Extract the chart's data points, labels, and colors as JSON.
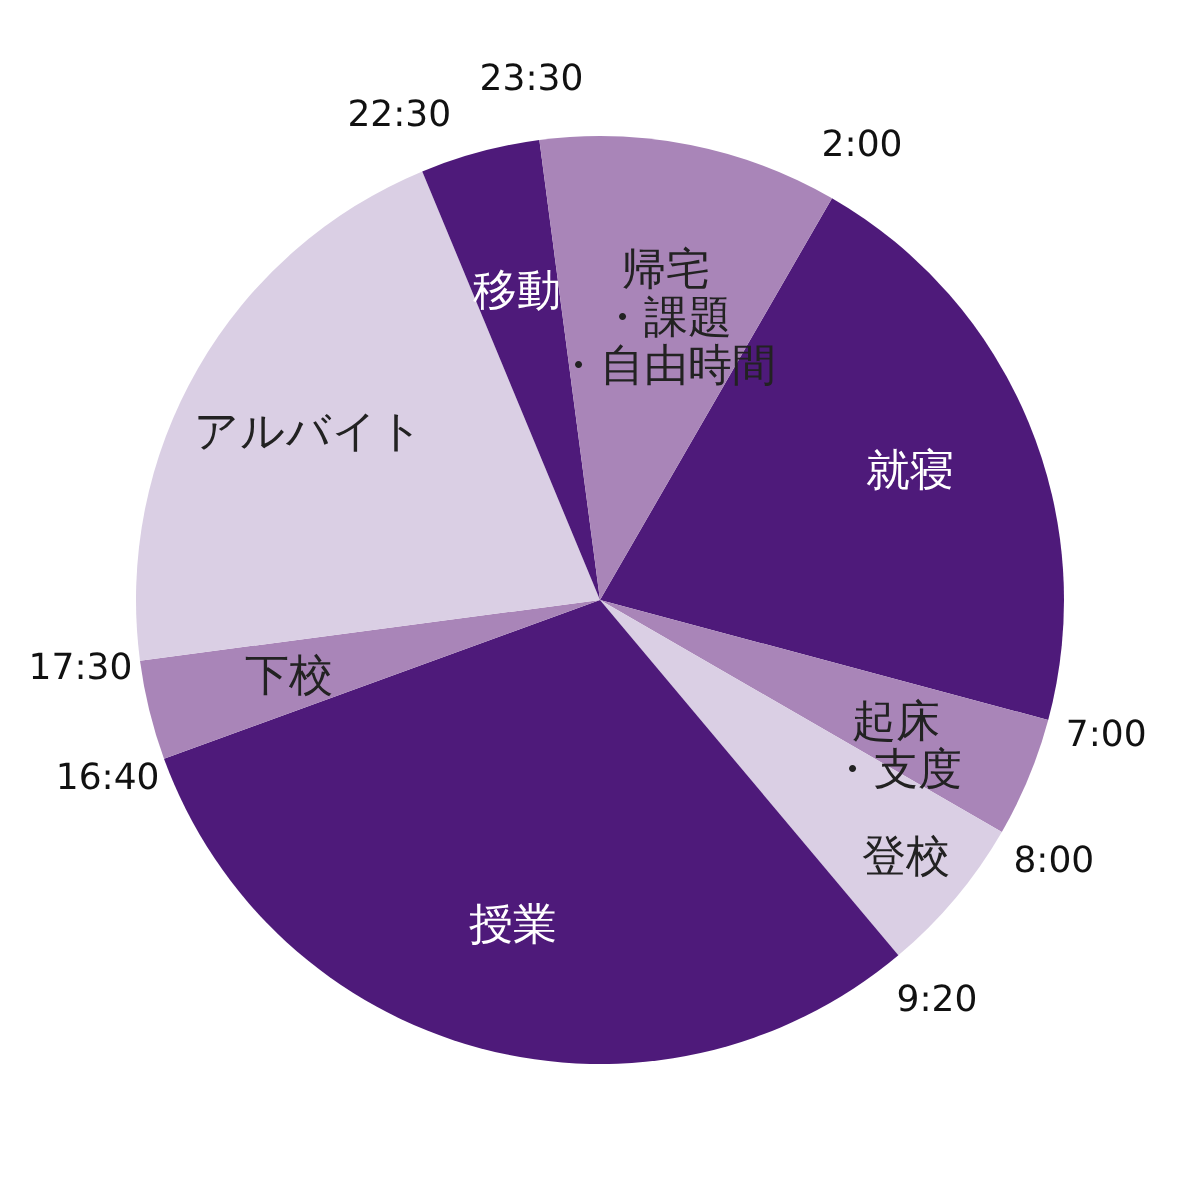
{
  "chart_data": {
    "type": "pie",
    "categories": [
      "就寝",
      "起床・支度",
      "登校",
      "授業",
      "下校",
      "アルバイト",
      "移動",
      "帰宅・課題・自由時間"
    ],
    "values": [
      20.83,
      4.17,
      5.55,
      30.56,
      3.47,
      20.83,
      4.17,
      10.42
    ],
    "colors": [
      "#4e1a7a",
      "#a985b8",
      "#dacfe4",
      "#4e1a7a",
      "#a985b8",
      "#dacfe4",
      "#4e1a7a",
      "#a985b8"
    ],
    "annotations": [
      "2:00",
      "7:00",
      "8:00",
      "9:20",
      "16:40",
      "17:30",
      "22:30",
      "23:30"
    ]
  }
}
